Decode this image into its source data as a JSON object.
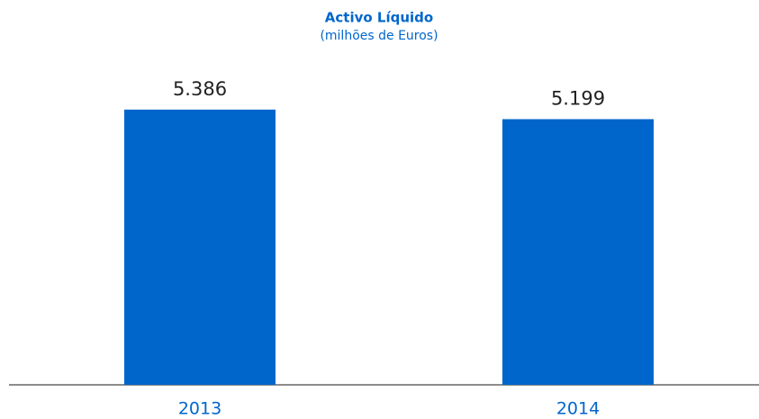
{
  "chart_data": {
    "type": "bar",
    "title": "Activo Líquido",
    "subtitle": "(milhões de Euros)",
    "categories": [
      "2013",
      "2014"
    ],
    "values": [
      5386,
      5199
    ],
    "value_labels": [
      "5.386",
      "5.199"
    ],
    "color": "#0066cc",
    "ylim": [
      0,
      6000
    ]
  }
}
